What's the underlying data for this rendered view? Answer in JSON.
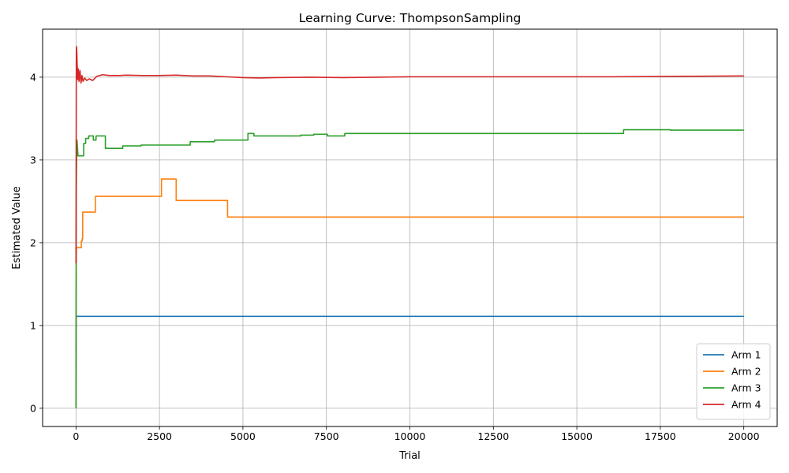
{
  "chart_data": {
    "type": "line",
    "title": "Learning Curve: ThompsonSampling",
    "xlabel": "Trial",
    "ylabel": "Estimated Value",
    "xlim": [
      -1000,
      21000
    ],
    "ylim": [
      -0.22,
      4.58
    ],
    "xticks": [
      0,
      2500,
      5000,
      7500,
      10000,
      12500,
      15000,
      17500,
      20000
    ],
    "yticks": [
      0,
      1,
      2,
      3,
      4
    ],
    "grid": true,
    "legend_position": "lower-right",
    "series": [
      {
        "name": "Arm 1",
        "color": "#1f77b4",
        "points": [
          [
            0,
            0
          ],
          [
            3,
            0.55
          ],
          [
            6,
            0.95
          ],
          [
            10,
            1.11
          ],
          [
            20000,
            1.11
          ]
        ]
      },
      {
        "name": "Arm 2",
        "color": "#ff7f0e",
        "points": [
          [
            0,
            0
          ],
          [
            4,
            1.2
          ],
          [
            8,
            1.75
          ],
          [
            12,
            1.94
          ],
          [
            160,
            1.94
          ],
          [
            160,
            2.02
          ],
          [
            185,
            2.02
          ],
          [
            185,
            2.05
          ],
          [
            200,
            2.05
          ],
          [
            200,
            2.37
          ],
          [
            580,
            2.37
          ],
          [
            580,
            2.56
          ],
          [
            2560,
            2.56
          ],
          [
            2560,
            2.77
          ],
          [
            3000,
            2.77
          ],
          [
            3000,
            2.51
          ],
          [
            4540,
            2.51
          ],
          [
            4540,
            2.31
          ],
          [
            20000,
            2.31
          ]
        ]
      },
      {
        "name": "Arm 3",
        "color": "#2ca02c",
        "points": [
          [
            0,
            0
          ],
          [
            5,
            1.8
          ],
          [
            10,
            2.7
          ],
          [
            20,
            3.05
          ],
          [
            30,
            3.24
          ],
          [
            45,
            3.15
          ],
          [
            60,
            3.05
          ],
          [
            230,
            3.05
          ],
          [
            230,
            3.2
          ],
          [
            290,
            3.2
          ],
          [
            290,
            3.26
          ],
          [
            380,
            3.26
          ],
          [
            380,
            3.29
          ],
          [
            520,
            3.29
          ],
          [
            520,
            3.24
          ],
          [
            600,
            3.24
          ],
          [
            600,
            3.29
          ],
          [
            880,
            3.29
          ],
          [
            880,
            3.14
          ],
          [
            1400,
            3.14
          ],
          [
            1400,
            3.17
          ],
          [
            1950,
            3.17
          ],
          [
            1950,
            3.18
          ],
          [
            3420,
            3.18
          ],
          [
            3420,
            3.22
          ],
          [
            4150,
            3.22
          ],
          [
            4150,
            3.24
          ],
          [
            5150,
            3.24
          ],
          [
            5150,
            3.32
          ],
          [
            5330,
            3.32
          ],
          [
            5330,
            3.29
          ],
          [
            6730,
            3.29
          ],
          [
            6730,
            3.3
          ],
          [
            7120,
            3.3
          ],
          [
            7120,
            3.31
          ],
          [
            7530,
            3.31
          ],
          [
            7530,
            3.29
          ],
          [
            8050,
            3.29
          ],
          [
            8050,
            3.32
          ],
          [
            16400,
            3.32
          ],
          [
            16400,
            3.365
          ],
          [
            17800,
            3.365
          ],
          [
            17800,
            3.36
          ],
          [
            20000,
            3.36
          ]
        ]
      },
      {
        "name": "Arm 4",
        "color": "#d62728",
        "points": [
          [
            0,
            1.75
          ],
          [
            5,
            2.9
          ],
          [
            10,
            4.25
          ],
          [
            15,
            4.37
          ],
          [
            25,
            4.3
          ],
          [
            35,
            4.15
          ],
          [
            50,
            3.97
          ],
          [
            70,
            4.1
          ],
          [
            90,
            3.95
          ],
          [
            120,
            4.08
          ],
          [
            150,
            3.93
          ],
          [
            180,
            4.02
          ],
          [
            210,
            3.95
          ],
          [
            260,
            3.99
          ],
          [
            320,
            3.96
          ],
          [
            400,
            3.98
          ],
          [
            500,
            3.96
          ],
          [
            620,
            4.01
          ],
          [
            800,
            4.03
          ],
          [
            1000,
            4.02
          ],
          [
            1300,
            4.02
          ],
          [
            1500,
            4.025
          ],
          [
            2000,
            4.02
          ],
          [
            2500,
            4.02
          ],
          [
            3000,
            4.025
          ],
          [
            3500,
            4.015
          ],
          [
            4000,
            4.015
          ],
          [
            4500,
            4.005
          ],
          [
            5000,
            3.995
          ],
          [
            5500,
            3.99
          ],
          [
            6000,
            3.995
          ],
          [
            7000,
            4.0
          ],
          [
            8000,
            3.995
          ],
          [
            9000,
            4.0
          ],
          [
            10000,
            4.005
          ],
          [
            12000,
            4.005
          ],
          [
            14000,
            4.005
          ],
          [
            16000,
            4.005
          ],
          [
            18000,
            4.01
          ],
          [
            20000,
            4.015
          ]
        ]
      }
    ]
  }
}
